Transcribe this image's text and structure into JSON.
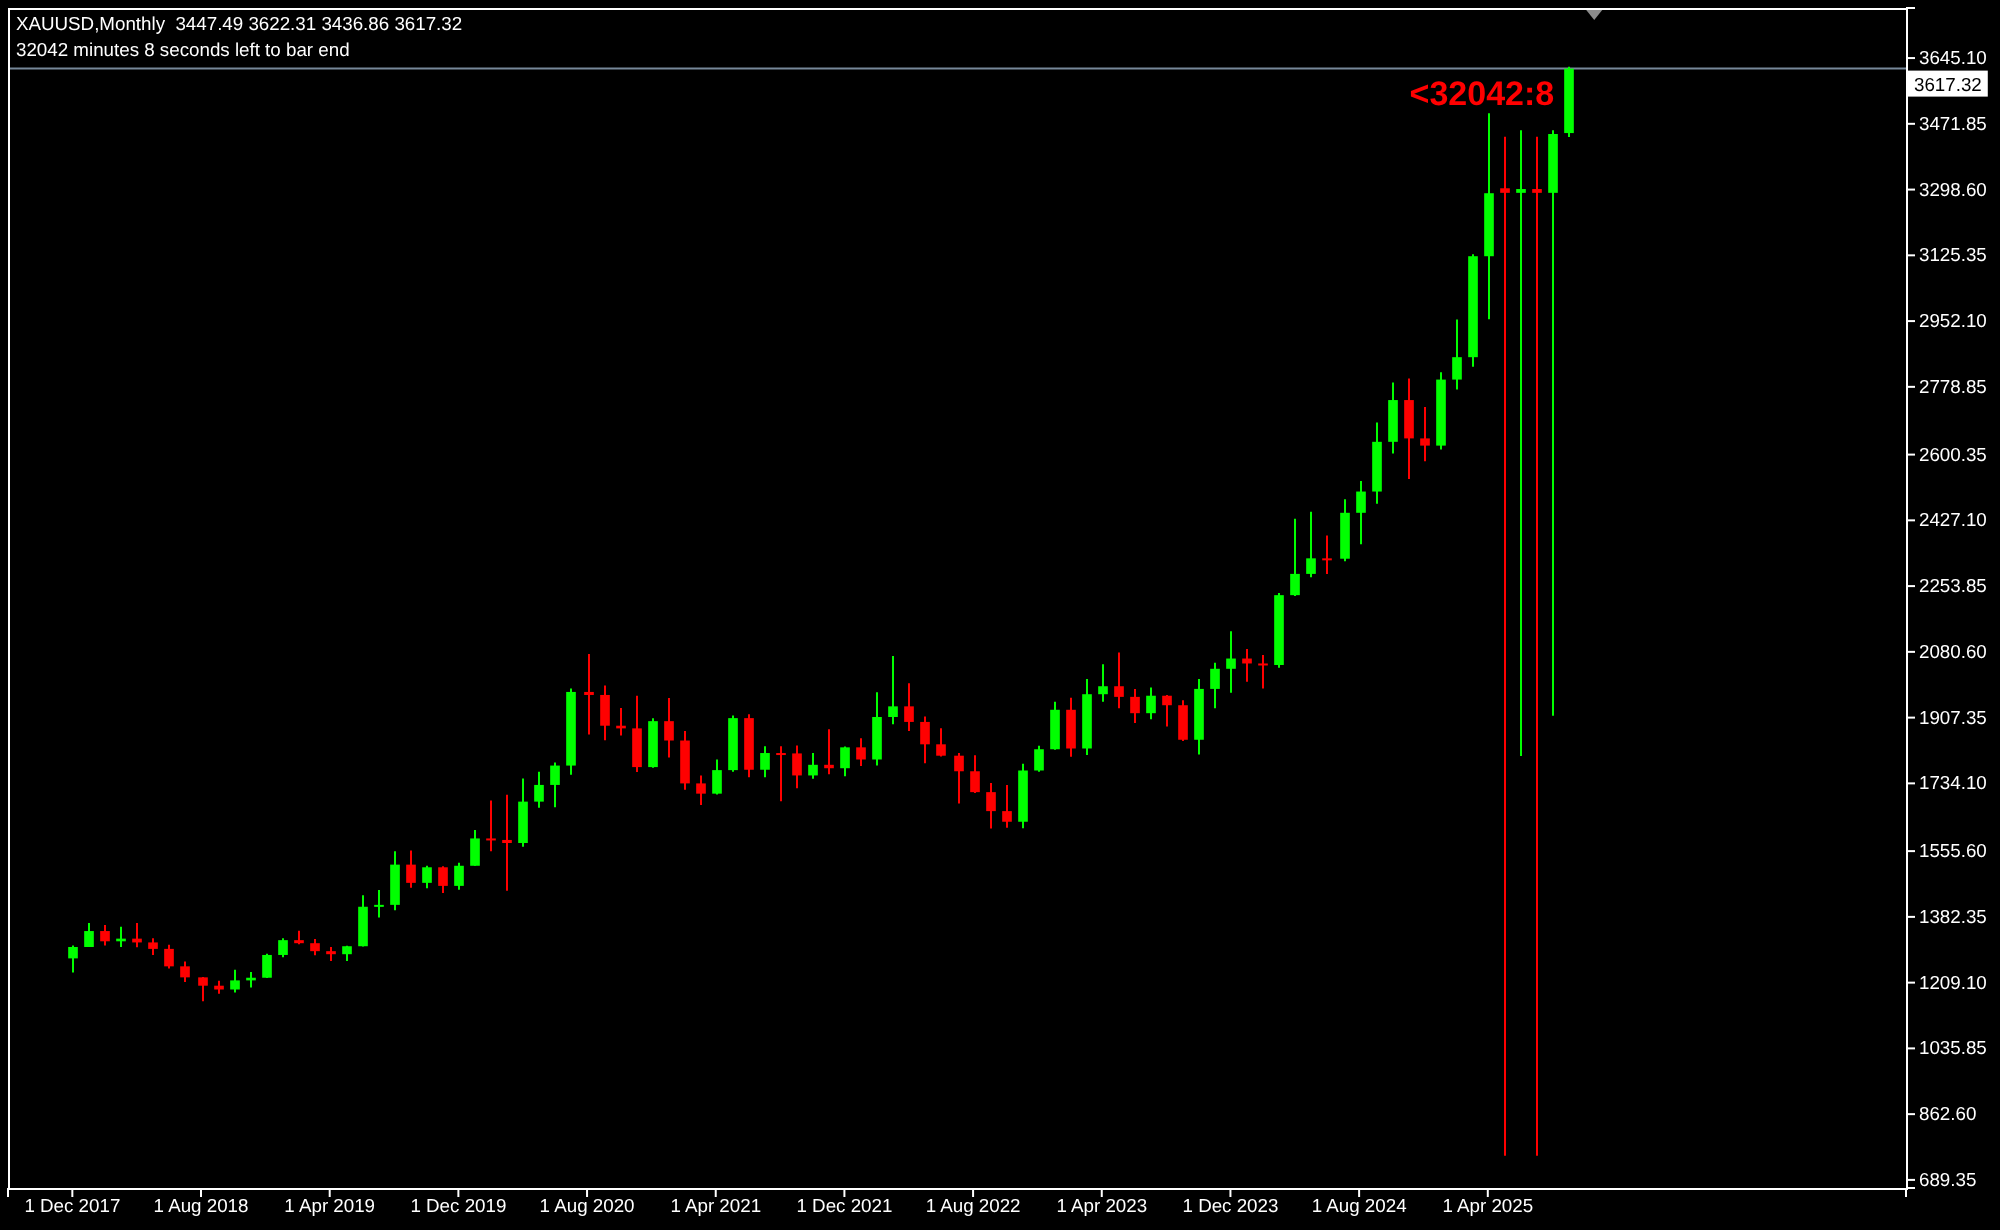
{
  "chart_data": {
    "type": "candlestick",
    "title": "XAUUSD,Monthly  3447.49 3622.31 3436.86 3617.32",
    "subtitle": "32042 minutes 8 seconds left to bar end",
    "annotations": [
      "<32042:8"
    ],
    "x": [
      "2017-12",
      "2018-01",
      "2018-02",
      "2018-03",
      "2018-04",
      "2018-05",
      "2018-06",
      "2018-07",
      "2018-08",
      "2018-09",
      "2018-10",
      "2018-11",
      "2018-12",
      "2019-01",
      "2019-02",
      "2019-03",
      "2019-04",
      "2019-05",
      "2019-06",
      "2019-07",
      "2019-08",
      "2019-09",
      "2019-10",
      "2019-11",
      "2019-12",
      "2020-01",
      "2020-02",
      "2020-03",
      "2020-04",
      "2020-05",
      "2020-06",
      "2020-07",
      "2020-08",
      "2020-09",
      "2020-10",
      "2020-11",
      "2020-12",
      "2021-01",
      "2021-02",
      "2021-03",
      "2021-04",
      "2021-05",
      "2021-06",
      "2021-07",
      "2021-08",
      "2021-09",
      "2021-10",
      "2021-11",
      "2021-12",
      "2022-01",
      "2022-02",
      "2022-03",
      "2022-04",
      "2022-05",
      "2022-06",
      "2022-07",
      "2022-08",
      "2022-09",
      "2022-10",
      "2022-11",
      "2022-12",
      "2023-01",
      "2023-02",
      "2023-03",
      "2023-04",
      "2023-05",
      "2023-06",
      "2023-07",
      "2023-08",
      "2023-09",
      "2023-10",
      "2023-11",
      "2023-12",
      "2024-01",
      "2024-02",
      "2024-03",
      "2024-04",
      "2024-05",
      "2024-06",
      "2024-07",
      "2024-08",
      "2024-09",
      "2024-10",
      "2024-11",
      "2024-12",
      "2025-01",
      "2025-02",
      "2025-03",
      "2025-04",
      "2025-05",
      "2025-06",
      "2025-07",
      "2025-08",
      "2025-09"
    ],
    "ohlc": [
      [
        1273,
        1307,
        1236,
        1303
      ],
      [
        1303,
        1366,
        1303,
        1345
      ],
      [
        1345,
        1361,
        1307,
        1318
      ],
      [
        1318,
        1356,
        1303,
        1325
      ],
      [
        1325,
        1366,
        1302,
        1315
      ],
      [
        1315,
        1326,
        1282,
        1298
      ],
      [
        1298,
        1309,
        1246,
        1252
      ],
      [
        1252,
        1265,
        1211,
        1223
      ],
      [
        1223,
        1224,
        1160,
        1201
      ],
      [
        1201,
        1214,
        1180,
        1191
      ],
      [
        1191,
        1243,
        1183,
        1215
      ],
      [
        1215,
        1237,
        1196,
        1222
      ],
      [
        1222,
        1285,
        1221,
        1282
      ],
      [
        1282,
        1326,
        1276,
        1321
      ],
      [
        1321,
        1346,
        1310,
        1313
      ],
      [
        1313,
        1324,
        1281,
        1292
      ],
      [
        1292,
        1303,
        1266,
        1284
      ],
      [
        1284,
        1306,
        1266,
        1305
      ],
      [
        1305,
        1439,
        1304,
        1409
      ],
      [
        1409,
        1453,
        1381,
        1414
      ],
      [
        1414,
        1555,
        1400,
        1520
      ],
      [
        1520,
        1557,
        1459,
        1472
      ],
      [
        1472,
        1517,
        1458,
        1513
      ],
      [
        1513,
        1516,
        1445,
        1464
      ],
      [
        1464,
        1525,
        1454,
        1517
      ],
      [
        1517,
        1611,
        1517,
        1589
      ],
      [
        1589,
        1689,
        1555,
        1585
      ],
      [
        1585,
        1704,
        1451,
        1577
      ],
      [
        1577,
        1747,
        1567,
        1686
      ],
      [
        1686,
        1765,
        1670,
        1730
      ],
      [
        1730,
        1789,
        1671,
        1781
      ],
      [
        1781,
        1984,
        1757,
        1975
      ],
      [
        1975,
        2075,
        1863,
        1967
      ],
      [
        1967,
        1992,
        1848,
        1886
      ],
      [
        1886,
        1933,
        1860,
        1879
      ],
      [
        1879,
        1965,
        1764,
        1777
      ],
      [
        1777,
        1906,
        1775,
        1898
      ],
      [
        1898,
        1959,
        1802,
        1847
      ],
      [
        1847,
        1872,
        1717,
        1734
      ],
      [
        1734,
        1755,
        1677,
        1707
      ],
      [
        1707,
        1797,
        1705,
        1769
      ],
      [
        1769,
        1913,
        1765,
        1906
      ],
      [
        1906,
        1916,
        1750,
        1770
      ],
      [
        1770,
        1832,
        1750,
        1814
      ],
      [
        1814,
        1832,
        1687,
        1813
      ],
      [
        1813,
        1834,
        1721,
        1755
      ],
      [
        1755,
        1814,
        1746,
        1783
      ],
      [
        1783,
        1877,
        1758,
        1774
      ],
      [
        1774,
        1831,
        1753,
        1829
      ],
      [
        1829,
        1853,
        1780,
        1797
      ],
      [
        1797,
        1974,
        1781,
        1909
      ],
      [
        1909,
        2070,
        1890,
        1937
      ],
      [
        1937,
        1998,
        1872,
        1896
      ],
      [
        1896,
        1910,
        1787,
        1837
      ],
      [
        1837,
        1879,
        1805,
        1807
      ],
      [
        1807,
        1814,
        1681,
        1766
      ],
      [
        1766,
        1808,
        1709,
        1711
      ],
      [
        1711,
        1735,
        1615,
        1661
      ],
      [
        1661,
        1730,
        1617,
        1633
      ],
      [
        1633,
        1786,
        1616,
        1768
      ],
      [
        1768,
        1833,
        1765,
        1824
      ],
      [
        1824,
        1949,
        1823,
        1928
      ],
      [
        1928,
        1960,
        1804,
        1826
      ],
      [
        1826,
        2009,
        1809,
        1969
      ],
      [
        1969,
        2048,
        1949,
        1990
      ],
      [
        1990,
        2079,
        1932,
        1962
      ],
      [
        1962,
        1983,
        1893,
        1919
      ],
      [
        1919,
        1987,
        1903,
        1965
      ],
      [
        1965,
        1967,
        1884,
        1940
      ],
      [
        1940,
        1953,
        1846,
        1849
      ],
      [
        1849,
        2009,
        1810,
        1983
      ],
      [
        1983,
        2052,
        1932,
        2036
      ],
      [
        2036,
        2135,
        1973,
        2063
      ],
      [
        2063,
        2088,
        2002,
        2050
      ],
      [
        2050,
        2072,
        1984,
        2046
      ],
      [
        2046,
        2236,
        2039,
        2230
      ],
      [
        2230,
        2431,
        2228,
        2286
      ],
      [
        2286,
        2450,
        2277,
        2327
      ],
      [
        2327,
        2387,
        2286,
        2326
      ],
      [
        2326,
        2483,
        2319,
        2447
      ],
      [
        2447,
        2531,
        2364,
        2503
      ],
      [
        2503,
        2685,
        2471,
        2634
      ],
      [
        2634,
        2790,
        2603,
        2744
      ],
      [
        2744,
        2801,
        2536,
        2643
      ],
      [
        2643,
        2726,
        2583,
        2624
      ],
      [
        2624,
        2817,
        2614,
        2798
      ],
      [
        2798,
        2956,
        2772,
        2857
      ],
      [
        2857,
        3128,
        2832,
        3123
      ],
      [
        3123,
        3500,
        2957,
        3289
      ],
      [
        3302,
        3438,
        753,
        3290
      ],
      [
        3290,
        3455,
        1806,
        3300
      ],
      [
        3300,
        3438,
        753,
        3290
      ],
      [
        3290,
        3455,
        1912,
        3445
      ],
      [
        3447.49,
        3622.31,
        3436.86,
        3617.32
      ]
    ],
    "colors": [
      "#00ff00",
      "#00ff00",
      "#ff0000",
      "#00ff00",
      "#ff0000",
      "#ff0000",
      "#ff0000",
      "#ff0000",
      "#ff0000",
      "#ff0000",
      "#00ff00",
      "#00ff00",
      "#00ff00",
      "#00ff00",
      "#ff0000",
      "#ff0000",
      "#ff0000",
      "#00ff00",
      "#00ff00",
      "#00ff00",
      "#00ff00",
      "#ff0000",
      "#00ff00",
      "#ff0000",
      "#00ff00",
      "#00ff00",
      "#ff0000",
      "#ff0000",
      "#00ff00",
      "#00ff00",
      "#00ff00",
      "#00ff00",
      "#ff0000",
      "#ff0000",
      "#ff0000",
      "#ff0000",
      "#00ff00",
      "#ff0000",
      "#ff0000",
      "#ff0000",
      "#00ff00",
      "#00ff00",
      "#ff0000",
      "#00ff00",
      "#ff0000",
      "#ff0000",
      "#00ff00",
      "#ff0000",
      "#00ff00",
      "#ff0000",
      "#00ff00",
      "#00ff00",
      "#ff0000",
      "#ff0000",
      "#ff0000",
      "#ff0000",
      "#ff0000",
      "#ff0000",
      "#ff0000",
      "#00ff00",
      "#00ff00",
      "#00ff00",
      "#ff0000",
      "#00ff00",
      "#00ff00",
      "#ff0000",
      "#ff0000",
      "#00ff00",
      "#ff0000",
      "#ff0000",
      "#00ff00",
      "#00ff00",
      "#00ff00",
      "#ff0000",
      "#ff0000",
      "#00ff00",
      "#00ff00",
      "#00ff00",
      "#ff0000",
      "#00ff00",
      "#00ff00",
      "#00ff00",
      "#00ff00",
      "#ff0000",
      "#ff0000",
      "#00ff00",
      "#00ff00",
      "#00ff00",
      "#00ff00",
      "#ff0000",
      "#00ff00",
      "#ff0000",
      "#00ff00",
      "#00ff00"
    ],
    "xlim": [
      "2017-08",
      "2027-06"
    ],
    "xticks": [
      {
        "value": "2017-12",
        "label": "1 Dec 2017"
      },
      {
        "value": "2018-08",
        "label": "1 Aug 2018"
      },
      {
        "value": "2019-04",
        "label": "1 Apr 2019"
      },
      {
        "value": "2019-12",
        "label": "1 Dec 2019"
      },
      {
        "value": "2020-08",
        "label": "1 Aug 2020"
      },
      {
        "value": "2021-04",
        "label": "1 Apr 2021"
      },
      {
        "value": "2021-12",
        "label": "1 Dec 2021"
      },
      {
        "value": "2022-08",
        "label": "1 Aug 2022"
      },
      {
        "value": "2023-04",
        "label": "1 Apr 2023"
      },
      {
        "value": "2023-12",
        "label": "1 Dec 2023"
      },
      {
        "value": "2024-08",
        "label": "1 Aug 2024"
      },
      {
        "value": "2025-04",
        "label": "1 Apr 2025"
      }
    ],
    "ylim": [
      668,
      3777
    ],
    "yticks": [
      689.35,
      {
        "value": 862.6,
        "label": "862.60"
      },
      1035.85,
      {
        "value": 1209.1,
        "label": "1209.10"
      },
      1382.35,
      {
        "value": 1555.6,
        "label": "1555.60"
      },
      {
        "value": 1734.1,
        "label": "1734.10"
      },
      1907.35,
      {
        "value": 2080.6,
        "label": "2080.60"
      },
      2253.85,
      {
        "value": 2427.1,
        "label": "2427.10"
      },
      2600.35,
      2778.85,
      {
        "value": 2952.1,
        "label": "2952.10"
      },
      3125.35,
      {
        "value": 3298.6,
        "label": "3298.60"
      },
      3471.85,
      {
        "value": 3645.1,
        "label": "3645.10"
      }
    ],
    "ref_lines": [
      {
        "axis": "y",
        "value": 3617.32,
        "label": "3617.32",
        "color": "#778899"
      }
    ]
  }
}
